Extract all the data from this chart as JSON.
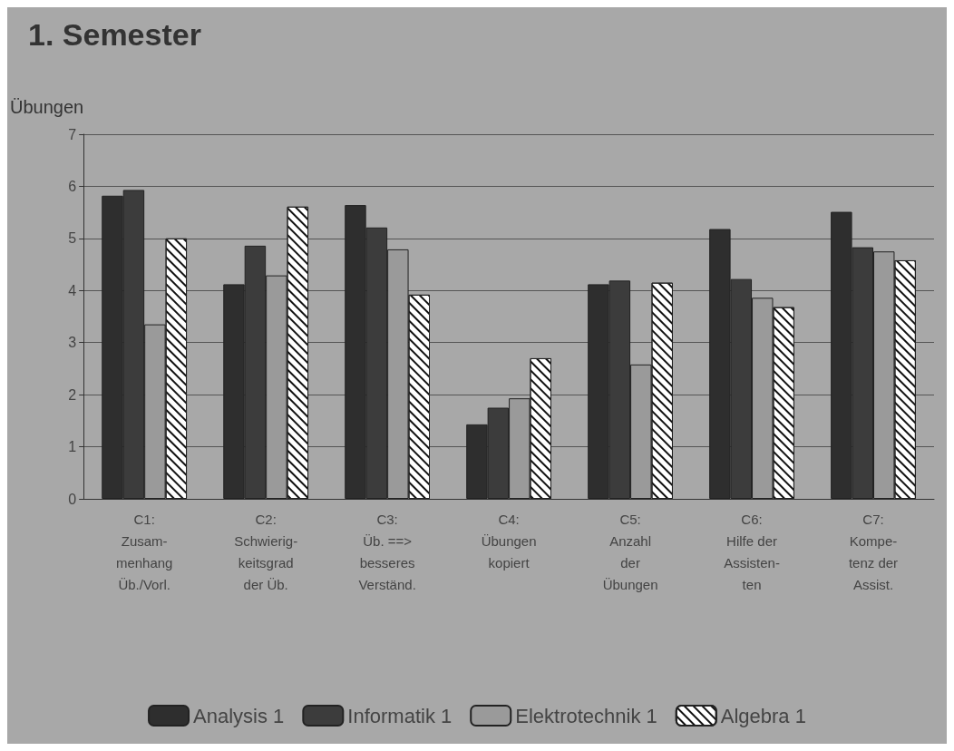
{
  "chart_data": {
    "type": "bar",
    "title": "1. Semester",
    "ylabel": "Übungen",
    "categories": [
      "C1:\nZusam-\nmenhang\nÜb./Vorl.",
      "C2:\nSchwierig-\nkeitsgrad\nder Üb.",
      "C3:\nÜb. ==>\nbesseres\nVerständ.",
      "C4:\nÜbungen\nkopiert",
      "C5:\nAnzahl\nder\nÜbungen",
      "C6:\nHilfe der\nAssisten-\nten",
      "C7:\nKompe-\ntenz der\nAssist."
    ],
    "series": [
      {
        "name": "Analysis 1",
        "color": "#2e2e2e",
        "values": [
          5.82,
          4.12,
          5.64,
          1.43,
          4.12,
          5.18,
          5.51
        ]
      },
      {
        "name": "Informatik 1",
        "color": "#3c3c3c",
        "values": [
          5.93,
          4.86,
          5.21,
          1.75,
          4.19,
          4.22,
          4.83
        ]
      },
      {
        "name": "Elektrotechnik 1",
        "color": "#9a9a9a",
        "values": [
          3.35,
          4.29,
          4.79,
          1.93,
          2.58,
          3.86,
          4.75
        ]
      },
      {
        "name": "Algebra 1",
        "color": "#ffffff",
        "values": [
          5.0,
          5.61,
          3.92,
          2.7,
          4.15,
          3.68,
          4.58
        ]
      }
    ],
    "ylim": [
      0,
      7
    ],
    "yticks": [
      0,
      1,
      2,
      3,
      4,
      5,
      6,
      7
    ],
    "grid": "y",
    "legend": "bottom"
  }
}
